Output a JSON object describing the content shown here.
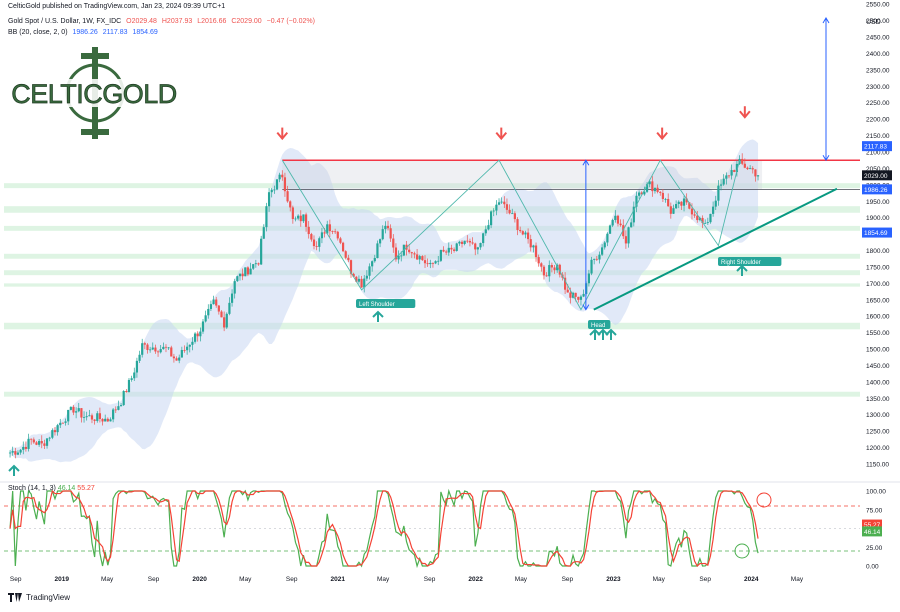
{
  "header": {
    "publisher": "CelticGold published on TradingView.com, Jan 23, 2024 09:39 UTC+1",
    "symbol": "Gold Spot / U.S. Dollar, 1W, FX_IDC",
    "ohlc": {
      "O": "O2029.48",
      "H": "H2037.93",
      "L": "L2016.66",
      "C": "C2029.00",
      "chg": "−0.47 (−0.02%)"
    },
    "bb": {
      "label": "BB (20, close, 2, 0)",
      "basis": "1986.26",
      "upper": "2117.83",
      "lower": "1854.69"
    }
  },
  "logo": {
    "text": "CELTICGOLD"
  },
  "colors": {
    "up": "#26a69a",
    "down": "#ef5350",
    "bb_fill": "#c9d7f3",
    "resistance": "#f23645",
    "trendline": "#089981",
    "stoch_k": "#4caf50",
    "stoch_d": "#f44336",
    "zone": "#c8ecd0"
  },
  "axis": {
    "currency": "USD",
    "price_ticks": [
      "2550.00",
      "2500.00",
      "2450.00",
      "2400.00",
      "2350.00",
      "2300.00",
      "2250.00",
      "2200.00",
      "2150.00",
      "2100.00",
      "2050.00",
      "2000.00",
      "1950.00",
      "1900.00",
      "1850.00",
      "1800.00",
      "1750.00",
      "1700.00",
      "1650.00",
      "1600.00",
      "1550.00",
      "1500.00",
      "1450.00",
      "1400.00",
      "1350.00",
      "1300.00",
      "1250.00",
      "1200.00",
      "1150.00"
    ],
    "stoch_ticks": [
      "100.00",
      "75.00",
      "50.00",
      "25.00",
      "0.00"
    ],
    "time_labels": [
      "Sep",
      "2019",
      "May",
      "Sep",
      "2020",
      "May",
      "Sep",
      "2021",
      "May",
      "Sep",
      "2022",
      "May",
      "Sep",
      "2023",
      "May",
      "Sep",
      "2024",
      "May"
    ]
  },
  "price_badges": [
    {
      "value": "2117.83",
      "color": "#2962ff"
    },
    {
      "value": "2029.00",
      "color": "#131722"
    },
    {
      "value": "1986.26",
      "color": "#2962ff"
    },
    {
      "value": "1854.69",
      "color": "#2962ff"
    }
  ],
  "stoch_badges": [
    {
      "value": "55.27",
      "color": "#f44336"
    },
    {
      "value": "46.14",
      "color": "#4caf50"
    }
  ],
  "stoch": {
    "label": "Stoch (14, 1, 3)",
    "k": "46.14",
    "d": "55.27",
    "upper_band": 80,
    "lower_band": 20
  },
  "annotations": {
    "left_shoulder": "Left Shoulder",
    "head": "Head",
    "right_shoulder": "Right Shoulder"
  },
  "chart_data": {
    "type": "candlestick",
    "title": "Gold Spot / U.S. Dollar, 1W, FX_IDC",
    "ylim": [
      1150,
      2575
    ],
    "y_scale": "linear",
    "grid": false,
    "resistance": 2075,
    "neckline_support": 1986.26,
    "inverse_head_and_shoulders": {
      "left_shoulder": {
        "date": "2021-03",
        "low": 1677
      },
      "head": {
        "date": "2022-10",
        "low": 1615
      },
      "right_shoulder": {
        "date": "2023-10",
        "low": 1810
      }
    },
    "trendline": [
      {
        "date": "2022-11",
        "price": 1620
      },
      {
        "date": "2024-08",
        "price": 1988
      }
    ],
    "closes": [
      {
        "date": "2018-08-17",
        "close": 1185
      },
      {
        "date": "2018-09-14",
        "close": 1195
      },
      {
        "date": "2018-10-12",
        "close": 1222
      },
      {
        "date": "2018-11-09",
        "close": 1208
      },
      {
        "date": "2018-12-07",
        "close": 1248
      },
      {
        "date": "2019-01-04",
        "close": 1285
      },
      {
        "date": "2019-02-01",
        "close": 1318
      },
      {
        "date": "2019-03-01",
        "close": 1295
      },
      {
        "date": "2019-04-05",
        "close": 1290
      },
      {
        "date": "2019-05-03",
        "close": 1285
      },
      {
        "date": "2019-06-07",
        "close": 1342
      },
      {
        "date": "2019-07-05",
        "close": 1412
      },
      {
        "date": "2019-08-02",
        "close": 1510
      },
      {
        "date": "2019-09-06",
        "close": 1505
      },
      {
        "date": "2019-10-04",
        "close": 1500
      },
      {
        "date": "2019-11-01",
        "close": 1465
      },
      {
        "date": "2019-12-06",
        "close": 1520
      },
      {
        "date": "2020-01-03",
        "close": 1560
      },
      {
        "date": "2020-02-07",
        "close": 1640
      },
      {
        "date": "2020-03-06",
        "close": 1580
      },
      {
        "date": "2020-04-03",
        "close": 1710
      },
      {
        "date": "2020-05-01",
        "close": 1735
      },
      {
        "date": "2020-06-05",
        "close": 1770
      },
      {
        "date": "2020-07-03",
        "close": 1975
      },
      {
        "date": "2020-08-07",
        "close": 2030
      },
      {
        "date": "2020-09-04",
        "close": 1890
      },
      {
        "date": "2020-10-02",
        "close": 1900
      },
      {
        "date": "2020-11-06",
        "close": 1810
      },
      {
        "date": "2020-12-04",
        "close": 1880
      },
      {
        "date": "2021-01-01",
        "close": 1850
      },
      {
        "date": "2021-02-05",
        "close": 1740
      },
      {
        "date": "2021-03-05",
        "close": 1700
      },
      {
        "date": "2021-04-02",
        "close": 1770
      },
      {
        "date": "2021-05-07",
        "close": 1880
      },
      {
        "date": "2021-06-04",
        "close": 1780
      },
      {
        "date": "2021-07-02",
        "close": 1815
      },
      {
        "date": "2021-08-06",
        "close": 1780
      },
      {
        "date": "2021-09-03",
        "close": 1750
      },
      {
        "date": "2021-10-01",
        "close": 1790
      },
      {
        "date": "2021-11-05",
        "close": 1800
      },
      {
        "date": "2021-12-03",
        "close": 1830
      },
      {
        "date": "2022-01-07",
        "close": 1795
      },
      {
        "date": "2022-02-04",
        "close": 1890
      },
      {
        "date": "2022-03-04",
        "close": 1950
      },
      {
        "date": "2022-04-01",
        "close": 1915
      },
      {
        "date": "2022-05-06",
        "close": 1850
      },
      {
        "date": "2022-06-03",
        "close": 1810
      },
      {
        "date": "2022-07-01",
        "close": 1730
      },
      {
        "date": "2022-08-05",
        "close": 1760
      },
      {
        "date": "2022-09-02",
        "close": 1665
      },
      {
        "date": "2022-10-07",
        "close": 1650
      },
      {
        "date": "2022-11-04",
        "close": 1760
      },
      {
        "date": "2022-12-02",
        "close": 1810
      },
      {
        "date": "2023-01-06",
        "close": 1920
      },
      {
        "date": "2023-02-03",
        "close": 1820
      },
      {
        "date": "2023-03-03",
        "close": 1975
      },
      {
        "date": "2023-04-07",
        "close": 2000
      },
      {
        "date": "2023-05-05",
        "close": 1980
      },
      {
        "date": "2023-06-02",
        "close": 1920
      },
      {
        "date": "2023-07-07",
        "close": 1945
      },
      {
        "date": "2023-08-04",
        "close": 1915
      },
      {
        "date": "2023-09-01",
        "close": 1870
      },
      {
        "date": "2023-10-06",
        "close": 1985
      },
      {
        "date": "2023-11-03",
        "close": 2035
      },
      {
        "date": "2023-12-01",
        "close": 2065
      },
      {
        "date": "2024-01-05",
        "close": 2045
      },
      {
        "date": "2024-01-19",
        "close": 2029
      }
    ],
    "stochastic": {
      "k_last": 46.14,
      "d_last": 55.27,
      "ylim": [
        0,
        100
      ]
    }
  }
}
